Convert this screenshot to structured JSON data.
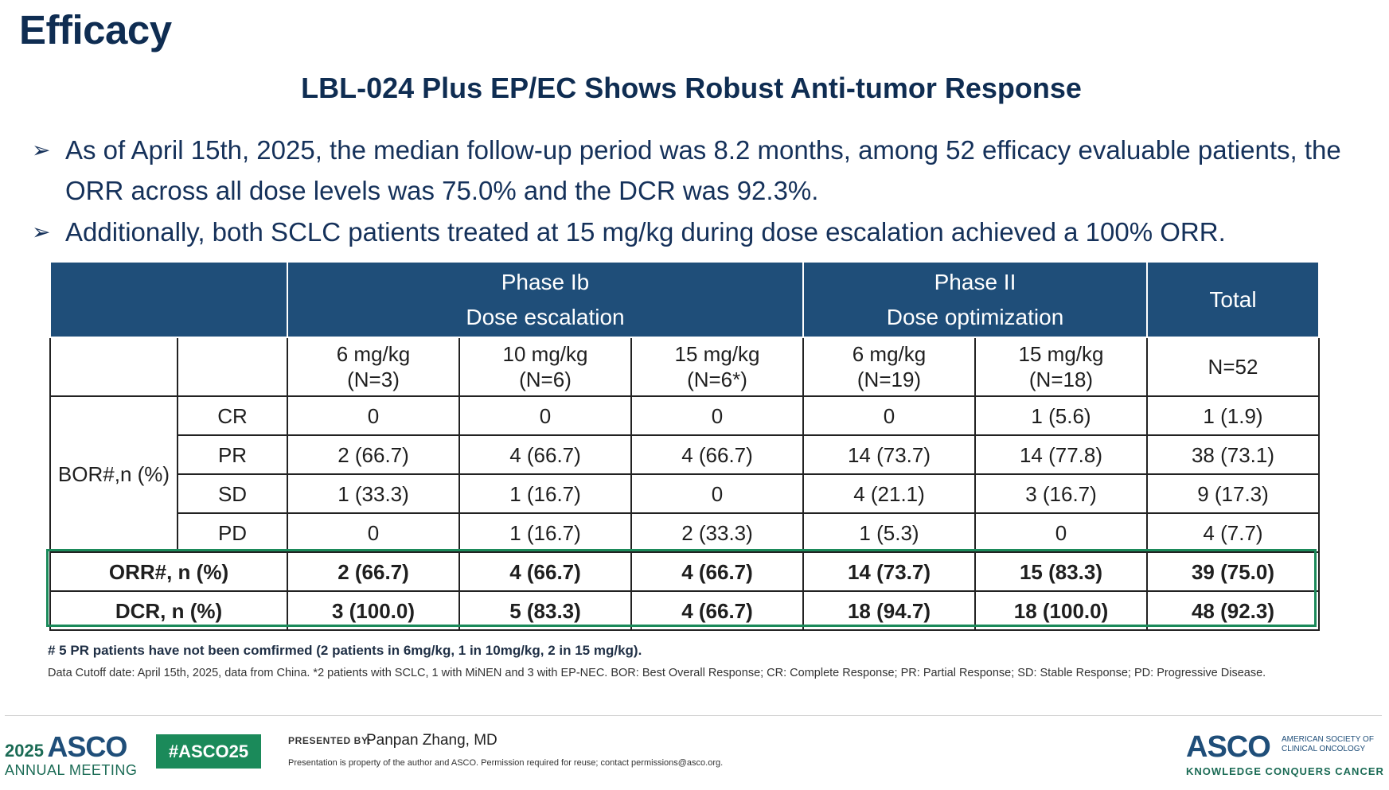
{
  "header": {
    "title": "Efficacy",
    "subtitle": "LBL-024 Plus EP/EC Shows Robust Anti-tumor Response"
  },
  "bullets": [
    "As of April 15th, 2025, the median follow-up period was 8.2 months, among 52 efficacy evaluable patients, the ORR across all dose levels was 75.0% and the DCR was 92.3%.",
    "Additionally, both SCLC patients treated at 15 mg/kg during dose escalation achieved a 100% ORR."
  ],
  "table": {
    "phase1_title": "Phase Ib",
    "phase1_sub": "Dose escalation",
    "phase2_title": "Phase II",
    "phase2_sub": "Dose optimization",
    "total_label": "Total",
    "cols": [
      {
        "dose": "6 mg/kg",
        "n": "(N=3)"
      },
      {
        "dose": "10 mg/kg",
        "n": "(N=6)"
      },
      {
        "dose": "15 mg/kg",
        "n": "(N=6*)"
      },
      {
        "dose": "6 mg/kg",
        "n": "(N=19)"
      },
      {
        "dose": "15 mg/kg",
        "n": "(N=18)"
      }
    ],
    "total_n": "N=52",
    "bor_label": "BOR#,n (%)",
    "rows": [
      {
        "label": "CR",
        "values": [
          "0",
          "0",
          "0",
          "0",
          "1 (5.6)",
          "1 (1.9)"
        ]
      },
      {
        "label": "PR",
        "values": [
          "2 (66.7)",
          "4 (66.7)",
          "4 (66.7)",
          "14 (73.7)",
          "14 (77.8)",
          "38 (73.1)"
        ]
      },
      {
        "label": "SD",
        "values": [
          "1 (33.3)",
          "1 (16.7)",
          "0",
          "4 (21.1)",
          "3 (16.7)",
          "9 (17.3)"
        ]
      },
      {
        "label": "PD",
        "values": [
          "0",
          "1 (16.7)",
          "2 (33.3)",
          "1 (5.3)",
          "0",
          "4 (7.7)"
        ]
      }
    ],
    "orr": {
      "label": "ORR#, n (%)",
      "values": [
        "2 (66.7)",
        "4 (66.7)",
        "4 (66.7)",
        "14 (73.7)",
        "15 (83.3)",
        "39 (75.0)"
      ]
    },
    "dcr": {
      "label": "DCR, n (%)",
      "values": [
        "3 (100.0)",
        "5 (83.3)",
        "4 (66.7)",
        "18 (94.7)",
        "18 (100.0)",
        "48 (92.3)"
      ]
    }
  },
  "footnotes": {
    "note1": "# 5 PR patients have not been comfirmed (2 patients in 6mg/kg, 1 in 10mg/kg, 2 in 15 mg/kg).",
    "note2": "Data Cutoff date: April 15th, 2025, data from China. *2 patients with SCLC, 1 with MiNEN and 3 with EP-NEC. BOR: Best Overall Response; CR: Complete Response; PR: Partial Response; SD: Stable Response; PD: Progressive Disease."
  },
  "footer": {
    "meeting_year": "2025",
    "meeting_brand": "ASCO",
    "meeting_sub": "ANNUAL MEETING",
    "hashtag": "#ASCO25",
    "presented_by": "PRESENTED BY:",
    "presenter": "Panpan Zhang, MD",
    "property": "Presentation is property of the author and ASCO. Permission required for reuse; contact permissions@asco.org.",
    "logo_brand": "ASCO",
    "logo_org": "AMERICAN SOCIETY OF CLINICAL ONCOLOGY",
    "logo_tagline": "KNOWLEDGE CONQUERS CANCER"
  },
  "colors": {
    "title": "#0f2d52",
    "table_header": "#1f4e79",
    "highlight_box": "#1b8a5a"
  }
}
